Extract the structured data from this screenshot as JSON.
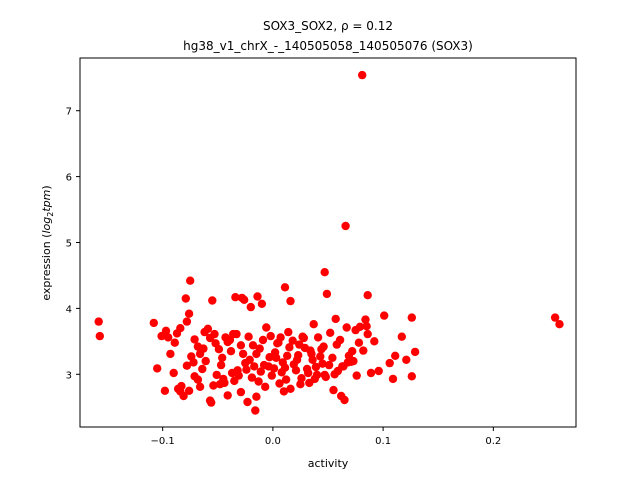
{
  "chart_data": {
    "type": "scatter",
    "title": "SOX3_SOX2, ρ = 0.12",
    "subtitle": "hg38_v1_chrX_-_140505058_140505076 (SOX3)",
    "xlabel": "activity",
    "ylabel_prefix": "expression (",
    "ylabel_log": "log",
    "ylabel_sub": "2",
    "ylabel_tpm": "tpm",
    "ylabel_suffix": ")",
    "xlim": [
      -0.175,
      0.275
    ],
    "ylim": [
      2.2,
      7.8
    ],
    "xticks": [
      -0.1,
      0.0,
      0.1,
      0.2
    ],
    "xtick_labels": [
      "−0.1",
      "0.0",
      "0.1",
      "0.2"
    ],
    "yticks": [
      3,
      4,
      5,
      6,
      7
    ],
    "ytick_labels": [
      "3",
      "4",
      "5",
      "6",
      "7"
    ],
    "grid": false,
    "marker_color": "#ff0000",
    "points": [
      [
        -0.158,
        3.8
      ],
      [
        -0.157,
        3.58
      ],
      [
        0.256,
        3.86
      ],
      [
        0.26,
        3.76
      ],
      [
        0.081,
        7.54
      ],
      [
        0.066,
        5.25
      ],
      [
        0.047,
        4.55
      ],
      [
        -0.075,
        4.42
      ],
      [
        0.011,
        4.32
      ],
      [
        0.049,
        4.22
      ],
      [
        0.086,
        4.2
      ],
      [
        -0.079,
        4.15
      ],
      [
        -0.034,
        4.17
      ],
      [
        -0.028,
        4.16
      ],
      [
        -0.014,
        4.18
      ],
      [
        0.016,
        4.11
      ],
      [
        -0.055,
        4.12
      ],
      [
        -0.108,
        3.78
      ],
      [
        -0.101,
        3.58
      ],
      [
        -0.097,
        3.66
      ],
      [
        -0.087,
        3.62
      ],
      [
        -0.084,
        3.7
      ],
      [
        -0.076,
        3.92
      ],
      [
        -0.068,
        3.42
      ],
      [
        -0.062,
        3.64
      ],
      [
        -0.057,
        3.55
      ],
      [
        -0.049,
        3.38
      ],
      [
        -0.041,
        3.49
      ],
      [
        -0.036,
        3.61
      ],
      [
        -0.029,
        3.44
      ],
      [
        -0.022,
        3.57
      ],
      [
        -0.015,
        3.31
      ],
      [
        -0.009,
        3.52
      ],
      [
        -0.003,
        3.26
      ],
      [
        0.004,
        3.47
      ],
      [
        0.009,
        3.18
      ],
      [
        0.015,
        3.41
      ],
      [
        0.022,
        3.22
      ],
      [
        0.028,
        3.55
      ],
      [
        0.034,
        3.36
      ],
      [
        0.039,
        3.11
      ],
      [
        0.046,
        3.42
      ],
      [
        0.052,
        3.63
      ],
      [
        0.057,
        3.84
      ],
      [
        0.063,
        3.12
      ],
      [
        0.069,
        3.28
      ],
      [
        0.075,
        3.67
      ],
      [
        0.079,
        3.72
      ],
      [
        0.084,
        3.83
      ],
      [
        0.089,
        3.02
      ],
      [
        0.096,
        3.05
      ],
      [
        0.101,
        3.89
      ],
      [
        0.106,
        3.17
      ],
      [
        0.111,
        3.28
      ],
      [
        0.117,
        3.57
      ],
      [
        0.121,
        3.22
      ],
      [
        0.126,
        3.86
      ],
      [
        0.129,
        3.34
      ],
      [
        0.126,
        2.97
      ],
      [
        0.109,
        2.93
      ],
      [
        -0.105,
        3.09
      ],
      [
        -0.098,
        2.75
      ],
      [
        -0.093,
        3.31
      ],
      [
        -0.089,
        3.48
      ],
      [
        -0.086,
        2.78
      ],
      [
        -0.083,
        2.82
      ],
      [
        -0.081,
        2.67
      ],
      [
        -0.078,
        3.13
      ],
      [
        -0.074,
        3.27
      ],
      [
        -0.071,
        2.97
      ],
      [
        -0.066,
        2.81
      ],
      [
        -0.061,
        3.2
      ],
      [
        -0.057,
        2.6
      ],
      [
        -0.054,
        2.83
      ],
      [
        -0.051,
        2.99
      ],
      [
        -0.047,
        3.14
      ],
      [
        -0.044,
        2.87
      ],
      [
        -0.041,
        2.68
      ],
      [
        -0.038,
        3.35
      ],
      [
        -0.035,
        2.9
      ],
      [
        -0.032,
        3.06
      ],
      [
        -0.029,
        2.73
      ],
      [
        -0.025,
        3.17
      ],
      [
        -0.023,
        2.58
      ],
      [
        -0.019,
        2.95
      ],
      [
        -0.016,
        2.45
      ],
      [
        -0.013,
        2.89
      ],
      [
        -0.011,
        3.04
      ],
      [
        -0.007,
        2.81
      ],
      [
        -0.004,
        3.12
      ],
      [
        -0.001,
        2.98
      ],
      [
        0.003,
        3.25
      ],
      [
        0.006,
        2.86
      ],
      [
        0.008,
        3.03
      ],
      [
        0.012,
        2.92
      ],
      [
        0.016,
        2.78
      ],
      [
        0.019,
        3.15
      ],
      [
        0.023,
        3.29
      ],
      [
        0.026,
        2.94
      ],
      [
        0.031,
        3.08
      ],
      [
        0.033,
        2.87
      ],
      [
        0.036,
        3.22
      ],
      [
        0.04,
        2.99
      ],
      [
        0.043,
        3.27
      ],
      [
        0.048,
        2.96
      ],
      [
        0.051,
        3.14
      ],
      [
        0.055,
        2.76
      ],
      [
        0.059,
        3.05
      ],
      [
        0.062,
        2.67
      ],
      [
        0.065,
        2.61
      ],
      [
        0.068,
        3.18
      ],
      [
        0.072,
        3.35
      ],
      [
        0.076,
        2.98
      ],
      [
        0.078,
        3.48
      ],
      [
        0.082,
        3.36
      ],
      [
        0.086,
        3.61
      ],
      [
        -0.078,
        3.8
      ],
      [
        -0.071,
        3.53
      ],
      [
        -0.066,
        3.31
      ],
      [
        -0.059,
        3.69
      ],
      [
        -0.052,
        3.47
      ],
      [
        -0.046,
        3.25
      ],
      [
        -0.043,
        3.56
      ],
      [
        -0.039,
        3.52
      ],
      [
        -0.033,
        3.61
      ],
      [
        -0.027,
        3.31
      ],
      [
        -0.021,
        3.22
      ],
      [
        -0.018,
        3.44
      ],
      [
        -0.012,
        3.39
      ],
      [
        -0.006,
        3.71
      ],
      [
        -0.002,
        3.58
      ],
      [
        0.002,
        3.33
      ],
      [
        0.007,
        3.56
      ],
      [
        0.013,
        3.28
      ],
      [
        0.018,
        3.51
      ],
      [
        0.024,
        3.45
      ],
      [
        0.029,
        3.4
      ],
      [
        0.035,
        3.31
      ],
      [
        0.041,
        3.56
      ],
      [
        0.045,
        3.16
      ],
      [
        0.054,
        3.25
      ],
      [
        0.058,
        3.45
      ],
      [
        0.061,
        3.52
      ],
      [
        0.067,
        3.71
      ],
      [
        0.071,
        3.19
      ],
      [
        0.085,
        3.73
      ],
      [
        0.092,
        3.5
      ],
      [
        -0.09,
        3.02
      ],
      [
        -0.084,
        2.74
      ],
      [
        -0.076,
        2.75
      ],
      [
        -0.068,
        2.92
      ],
      [
        -0.064,
        3.08
      ],
      [
        -0.056,
        2.57
      ],
      [
        -0.045,
        2.93
      ],
      [
        -0.037,
        3.02
      ],
      [
        -0.031,
        2.98
      ],
      [
        -0.024,
        3.07
      ],
      [
        -0.017,
        3.12
      ],
      [
        -0.008,
        3.14
      ],
      [
        0.001,
        3.09
      ],
      [
        0.011,
        3.1
      ],
      [
        0.021,
        3.06
      ],
      [
        0.032,
        3.02
      ],
      [
        0.038,
        2.93
      ],
      [
        0.047,
        2.99
      ],
      [
        0.056,
        3.0
      ],
      [
        0.064,
        3.12
      ],
      [
        0.073,
        3.2
      ],
      [
        -0.095,
        3.56
      ],
      [
        -0.072,
        3.18
      ],
      [
        -0.063,
        3.39
      ],
      [
        -0.053,
        3.61
      ],
      [
        -0.026,
        4.13
      ],
      [
        -0.02,
        4.02
      ],
      [
        -0.01,
        4.07
      ],
      [
        0.005,
        3.48
      ],
      [
        0.014,
        3.64
      ],
      [
        0.027,
        3.57
      ],
      [
        0.037,
        3.76
      ],
      [
        0.044,
        3.38
      ],
      [
        -0.048,
        2.85
      ],
      [
        -0.015,
        2.66
      ],
      [
        0.01,
        2.74
      ],
      [
        0.025,
        2.85
      ]
    ]
  }
}
